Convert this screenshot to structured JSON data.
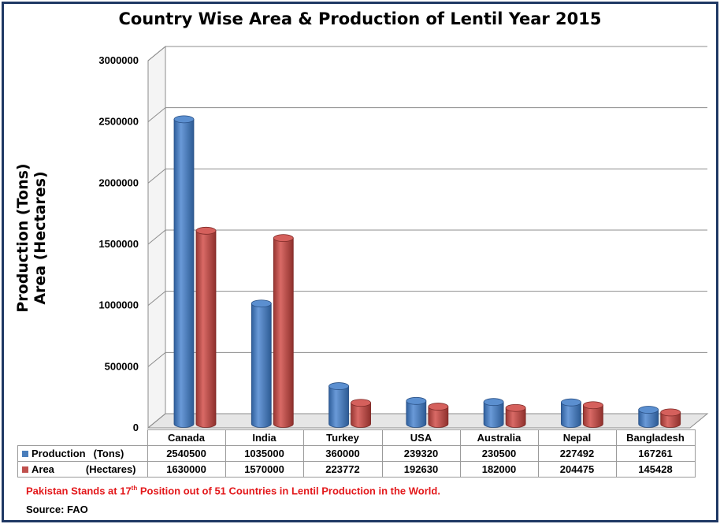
{
  "chart_data": {
    "type": "bar",
    "title": "Country Wise Area & Production of Lentil Year 2015",
    "ylabel": [
      "Production (Tons)",
      "Area (Hectares)"
    ],
    "ylim": [
      0,
      3000000
    ],
    "yticks": [
      "0",
      "500000",
      "1000000",
      "1500000",
      "2000000",
      "2500000",
      "3000000"
    ],
    "categories": [
      "Canada",
      "India",
      "Turkey",
      "USA",
      "Australia",
      "Nepal",
      "Bangladesh"
    ],
    "series": [
      {
        "name": "Production (Tons)",
        "name_parts": [
          "Production",
          "(Tons)"
        ],
        "color": "#4a7ebb",
        "values": [
          2540500,
          1035000,
          360000,
          239320,
          230500,
          227492,
          167261
        ]
      },
      {
        "name": "Area (Hectares)",
        "name_parts": [
          "Area",
          "(Hectares)"
        ],
        "color": "#c0504d",
        "values": [
          1630000,
          1570000,
          223772,
          192630,
          182000,
          204475,
          145428
        ]
      }
    ],
    "grid": true,
    "legend": "data table below chart"
  },
  "note": {
    "prefix": "Pakistan Stands at 17",
    "sup": "th",
    "suffix": " Position out of 51 Countries in Lentil Production in the World."
  },
  "source": "Source: FAO"
}
